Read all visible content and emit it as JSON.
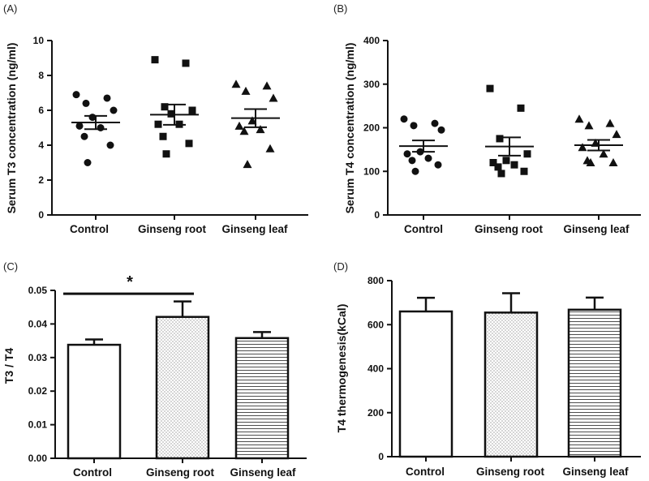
{
  "chart_data": [
    {
      "panel": "(A)",
      "type": "scatter",
      "ylabel": "Serum T3 concentration (ng/ml)",
      "ylim": [
        0,
        10
      ],
      "yticks": [
        "0",
        "2",
        "4",
        "6",
        "8",
        "10"
      ],
      "categories": [
        "Control",
        "Ginseng root",
        "Ginseng leaf"
      ],
      "markers": [
        "circle",
        "square",
        "triangle"
      ],
      "groups": [
        {
          "name": "Control",
          "mean": 5.3,
          "sem": 0.38,
          "points": [
            6.9,
            6.7,
            6.4,
            6.0,
            5.6,
            5.1,
            5.0,
            4.5,
            4.0,
            3.0
          ]
        },
        {
          "name": "Ginseng root",
          "mean": 5.75,
          "sem": 0.58,
          "points": [
            8.9,
            8.7,
            6.2,
            6.0,
            5.8,
            5.2,
            5.2,
            4.5,
            4.1,
            3.5
          ]
        },
        {
          "name": "Ginseng leaf",
          "mean": 5.55,
          "sem": 0.52,
          "points": [
            7.5,
            7.4,
            7.1,
            6.7,
            5.4,
            5.1,
            4.9,
            4.8,
            3.8,
            2.9
          ]
        }
      ]
    },
    {
      "panel": "(B)",
      "type": "scatter",
      "ylabel": "Serum T4 concentration (ng/ml)",
      "ylim": [
        0,
        400
      ],
      "yticks": [
        "0",
        "100",
        "200",
        "300",
        "400"
      ],
      "categories": [
        "Control",
        "Ginseng root",
        "Ginseng leaf"
      ],
      "markers": [
        "circle",
        "square",
        "triangle"
      ],
      "groups": [
        {
          "name": "Control",
          "mean": 158,
          "sem": 13,
          "points": [
            220,
            210,
            205,
            195,
            145,
            140,
            130,
            125,
            115,
            100
          ]
        },
        {
          "name": "Ginseng root",
          "mean": 157,
          "sem": 21,
          "points": [
            290,
            245,
            175,
            140,
            125,
            120,
            115,
            110,
            100,
            95
          ]
        },
        {
          "name": "Ginseng leaf",
          "mean": 160,
          "sem": 12,
          "points": [
            220,
            210,
            205,
            185,
            165,
            155,
            140,
            125,
            120,
            120
          ]
        }
      ]
    },
    {
      "panel": "(C)",
      "type": "bar",
      "ylabel": "T3 / T4",
      "ylim": [
        0,
        0.05
      ],
      "yticks": [
        "0.00",
        "0.01",
        "0.02",
        "0.03",
        "0.04",
        "0.05"
      ],
      "categories": [
        "Control",
        "Ginseng root",
        "Ginseng leaf"
      ],
      "values": [
        0.0338,
        0.0421,
        0.0358
      ],
      "errors": [
        0.0016,
        0.0046,
        0.0018
      ],
      "fills": [
        "white",
        "dots",
        "hlines"
      ],
      "annotation": {
        "text": "*",
        "bracket_from": "Control",
        "bracket_to": "Ginseng root",
        "bracket_value": 0.049
      }
    },
    {
      "panel": "(D)",
      "type": "bar",
      "ylabel": "T4 thermogenesis(kCal)",
      "ylim": [
        0,
        800
      ],
      "yticks": [
        "0",
        "200",
        "400",
        "600",
        "800"
      ],
      "categories": [
        "Control",
        "Ginseng root",
        "Ginseng leaf"
      ],
      "values": [
        660,
        655,
        668
      ],
      "errors": [
        62,
        88,
        55
      ],
      "fills": [
        "white",
        "dots",
        "hlines"
      ]
    }
  ],
  "colors": {
    "ink": "#111111",
    "background": "#ffffff"
  }
}
